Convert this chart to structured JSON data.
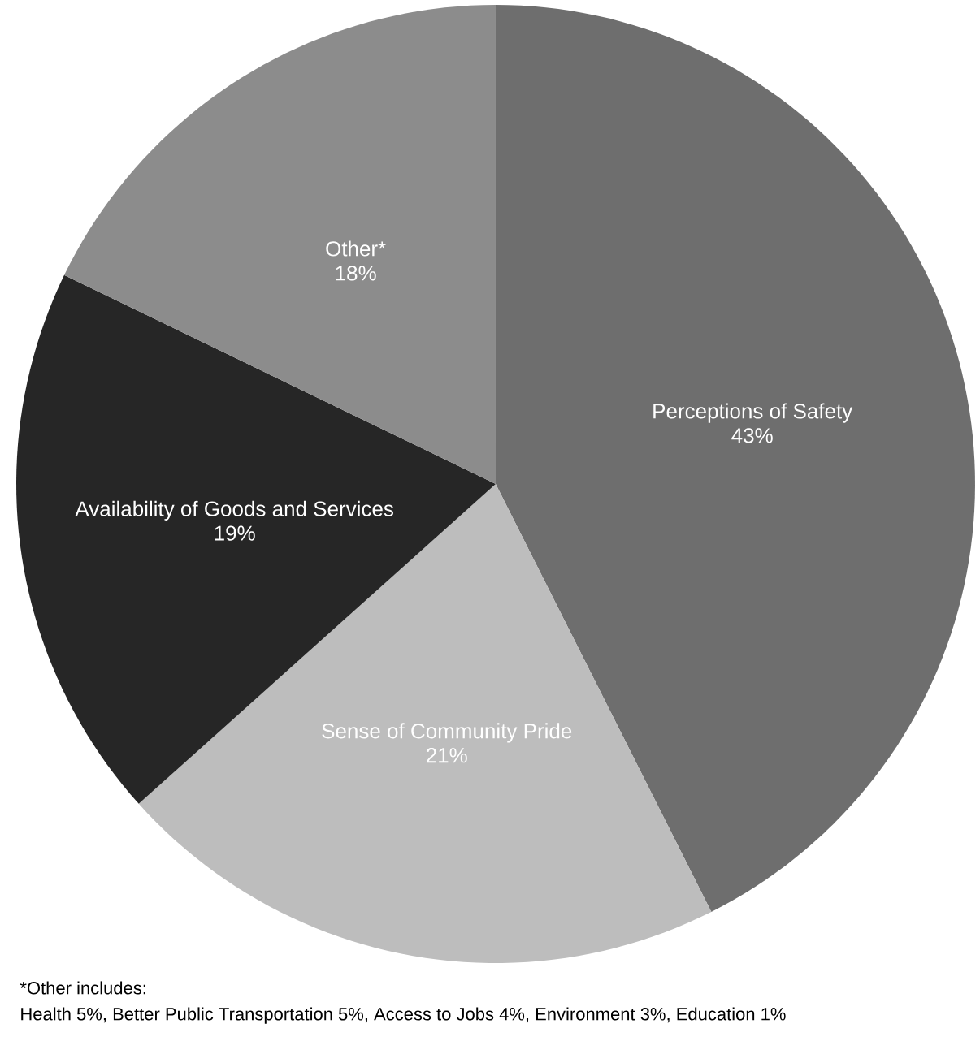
{
  "chart_data": {
    "type": "pie",
    "categories": [
      "Perceptions of Safety",
      "Sense of Community Pride",
      "Availability of Goods and Services",
      "Other*"
    ],
    "values": [
      43,
      21,
      19,
      18
    ],
    "value_labels": [
      "43%",
      "21%",
      "19%",
      "18%"
    ],
    "colors": [
      "#6e6e6e",
      "#bdbdbd",
      "#262626",
      "#8c8c8c"
    ],
    "annotations": [
      "*Other includes:",
      "Health 5%, Better Public Transportation 5%, Access to Jobs 4%, Environment 3%, Education 1%"
    ]
  }
}
